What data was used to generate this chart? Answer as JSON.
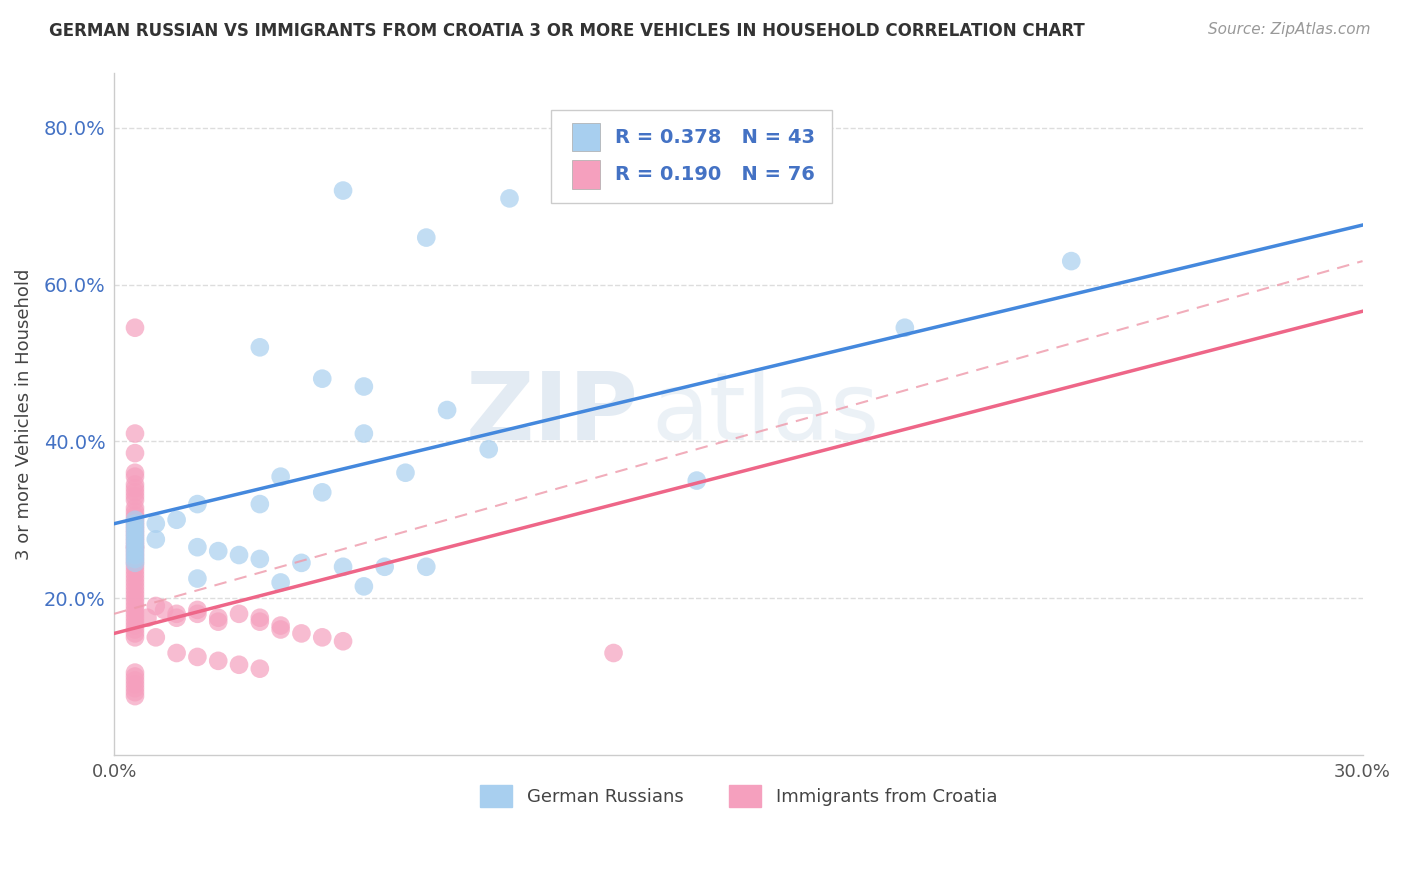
{
  "title": "GERMAN RUSSIAN VS IMMIGRANTS FROM CROATIA 3 OR MORE VEHICLES IN HOUSEHOLD CORRELATION CHART",
  "source": "Source: ZipAtlas.com",
  "ylabel": "3 or more Vehicles in Household",
  "xmin": 0.0,
  "xmax": 0.3,
  "ymin": 0.0,
  "ymax": 0.87,
  "yticks": [
    0.2,
    0.4,
    0.6,
    0.8
  ],
  "ytick_labels": [
    "20.0%",
    "40.0%",
    "60.0%",
    "80.0%"
  ],
  "legend_blue_r": "0.378",
  "legend_blue_n": "43",
  "legend_pink_r": "0.190",
  "legend_pink_n": "76",
  "blue_color": "#A8CFEF",
  "pink_color": "#F5A0BE",
  "blue_line_color": "#4488DD",
  "pink_line_color": "#EE6688",
  "pink_dash_color": "#EE99AA",
  "watermark_color": "#C8D8E8",
  "background_color": "#FFFFFF",
  "grid_color": "#DDDDDD",
  "blue_line_intercept": 0.295,
  "blue_line_slope": 1.27,
  "pink_line_intercept": 0.155,
  "pink_line_slope": 1.37,
  "pink_dash_intercept": 0.18,
  "pink_dash_slope": 1.5,
  "blue_scatter_x": [
    0.055,
    0.095,
    0.075,
    0.035,
    0.05,
    0.06,
    0.08,
    0.06,
    0.09,
    0.07,
    0.05,
    0.04,
    0.035,
    0.02,
    0.015,
    0.01,
    0.01,
    0.02,
    0.025,
    0.03,
    0.035,
    0.045,
    0.055,
    0.065,
    0.075,
    0.02,
    0.04,
    0.06,
    0.14,
    0.23,
    0.19,
    0.005,
    0.005,
    0.005,
    0.005,
    0.005,
    0.005,
    0.005,
    0.005,
    0.005,
    0.005,
    0.005,
    0.005
  ],
  "blue_scatter_y": [
    0.72,
    0.71,
    0.66,
    0.52,
    0.48,
    0.47,
    0.44,
    0.41,
    0.39,
    0.36,
    0.335,
    0.355,
    0.32,
    0.32,
    0.3,
    0.295,
    0.275,
    0.265,
    0.26,
    0.255,
    0.25,
    0.245,
    0.24,
    0.24,
    0.24,
    0.225,
    0.22,
    0.215,
    0.35,
    0.63,
    0.545,
    0.3,
    0.295,
    0.29,
    0.285,
    0.28,
    0.275,
    0.27,
    0.265,
    0.26,
    0.255,
    0.25,
    0.245
  ],
  "pink_scatter_x": [
    0.005,
    0.005,
    0.005,
    0.005,
    0.005,
    0.005,
    0.005,
    0.005,
    0.005,
    0.005,
    0.005,
    0.005,
    0.005,
    0.005,
    0.005,
    0.005,
    0.005,
    0.005,
    0.005,
    0.005,
    0.005,
    0.005,
    0.005,
    0.005,
    0.005,
    0.005,
    0.005,
    0.005,
    0.005,
    0.005,
    0.005,
    0.005,
    0.005,
    0.005,
    0.005,
    0.005,
    0.005,
    0.005,
    0.005,
    0.005,
    0.005,
    0.005,
    0.005,
    0.005,
    0.005,
    0.008,
    0.01,
    0.012,
    0.015,
    0.015,
    0.02,
    0.02,
    0.025,
    0.025,
    0.03,
    0.035,
    0.035,
    0.04,
    0.04,
    0.045,
    0.05,
    0.055,
    0.01,
    0.015,
    0.02,
    0.025,
    0.03,
    0.035,
    0.12,
    0.005,
    0.005,
    0.005,
    0.005,
    0.005,
    0.005,
    0.005
  ],
  "pink_scatter_y": [
    0.545,
    0.41,
    0.385,
    0.36,
    0.355,
    0.345,
    0.34,
    0.335,
    0.33,
    0.325,
    0.315,
    0.31,
    0.305,
    0.3,
    0.295,
    0.29,
    0.285,
    0.28,
    0.275,
    0.27,
    0.265,
    0.265,
    0.26,
    0.255,
    0.25,
    0.245,
    0.24,
    0.235,
    0.23,
    0.225,
    0.22,
    0.215,
    0.21,
    0.205,
    0.2,
    0.195,
    0.19,
    0.185,
    0.18,
    0.175,
    0.17,
    0.165,
    0.16,
    0.155,
    0.15,
    0.175,
    0.19,
    0.185,
    0.18,
    0.175,
    0.185,
    0.18,
    0.175,
    0.17,
    0.18,
    0.175,
    0.17,
    0.165,
    0.16,
    0.155,
    0.15,
    0.145,
    0.15,
    0.13,
    0.125,
    0.12,
    0.115,
    0.11,
    0.13,
    0.105,
    0.1,
    0.095,
    0.09,
    0.085,
    0.08,
    0.075
  ]
}
